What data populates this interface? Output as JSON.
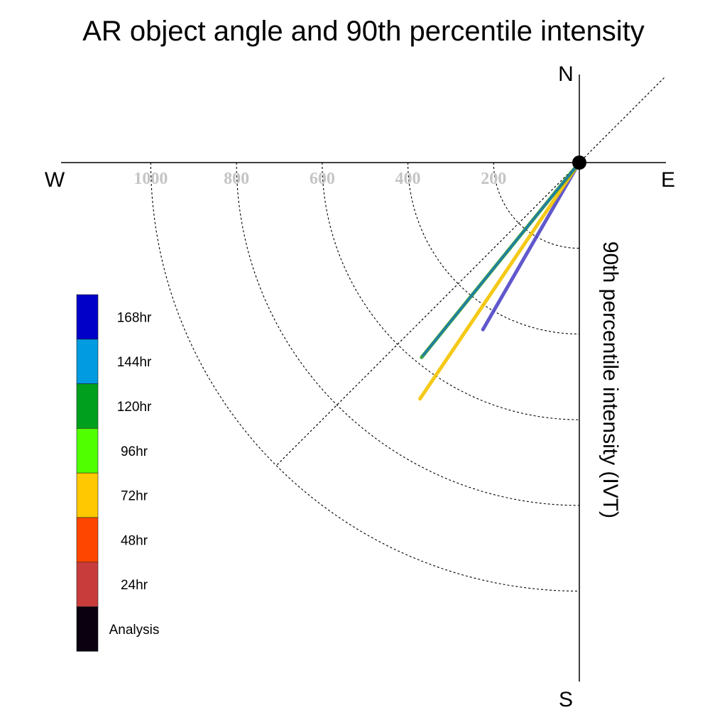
{
  "chart_data": {
    "type": "polar-line",
    "title": "AR object angle and 90th percentile intensity",
    "ylabel": "90th percentile intensity (IVT)",
    "compass": {
      "north": "N",
      "south": "S",
      "east": "E",
      "west": "W"
    },
    "radius_ticks": [
      "200",
      "400",
      "600",
      "800",
      "1000"
    ],
    "radius_max": 1000,
    "series": [
      {
        "name": "168hr",
        "color": "#5046c8",
        "angle_deg": 210,
        "intensity": 450
      },
      {
        "name": "72hr",
        "color": "#f5c400",
        "angle_deg": 214,
        "intensity": 665
      },
      {
        "name": "120hr",
        "color": "#2ca02c",
        "angle_deg": 219,
        "intensity": 585
      },
      {
        "name": "144hr",
        "color": "#1f77b4",
        "angle_deg": 219,
        "intensity": 580
      }
    ],
    "legend": [
      {
        "label": "168hr",
        "color": "#0000c8"
      },
      {
        "label": "144hr",
        "color": "#009be0"
      },
      {
        "label": "120hr",
        "color": "#00a01e"
      },
      {
        "label": "96hr",
        "color": "#50ff00"
      },
      {
        "label": "72hr",
        "color": "#ffc800"
      },
      {
        "label": "48hr",
        "color": "#ff4600"
      },
      {
        "label": "24hr",
        "color": "#c83c3c"
      },
      {
        "label": "Analysis",
        "color": "#0a0010"
      }
    ]
  }
}
